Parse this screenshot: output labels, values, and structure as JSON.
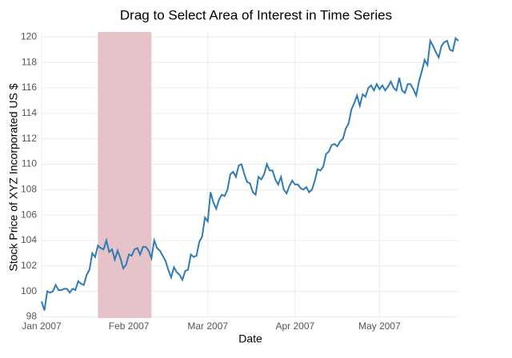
{
  "chart_data": {
    "type": "line",
    "title": "Drag to Select Area of Interest in Time Series",
    "x_label": "Date",
    "y_label": "Stock Price of XYZ Incorporated US $",
    "series": [
      {
        "name": "XYZ",
        "color": "#2f7bb5",
        "values": [
          99.2,
          98.5,
          100.0,
          99.9,
          100.0,
          100.5,
          100.1,
          100.1,
          100.2,
          100.2,
          99.9,
          100.2,
          100.1,
          100.8,
          100.6,
          100.5,
          101.3,
          101.7,
          103.0,
          102.7,
          103.6,
          103.4,
          103.3,
          104.0,
          103.1,
          103.3,
          102.5,
          103.2,
          102.6,
          101.8,
          102.1,
          102.9,
          102.8,
          103.3,
          103.4,
          102.9,
          103.5,
          103.5,
          103.2,
          102.6,
          104.0,
          103.4,
          103.2,
          102.8,
          102.4,
          101.7,
          101.1,
          101.9,
          101.5,
          101.3,
          100.9,
          101.6,
          101.7,
          102.9,
          102.7,
          102.8,
          103.9,
          104.3,
          105.8,
          105.5,
          107.8,
          107.0,
          106.5,
          107.2,
          107.6,
          107.5,
          108.0,
          109.2,
          109.4,
          109.0,
          109.9,
          110.0,
          109.2,
          108.6,
          108.5,
          107.8,
          107.6,
          109.0,
          108.8,
          109.2,
          110.0,
          109.5,
          109.5,
          108.8,
          108.4,
          109.0,
          108.0,
          107.7,
          108.3,
          108.7,
          108.4,
          108.4,
          108.1,
          108.0,
          108.2,
          107.8,
          108.0,
          108.7,
          109.6,
          109.5,
          109.8,
          110.8,
          111.0,
          111.5,
          111.6,
          111.4,
          111.8,
          112.0,
          112.8,
          113.2,
          114.3,
          114.8,
          115.4,
          114.6,
          115.5,
          115.3,
          116.0,
          116.2,
          115.8,
          116.3,
          115.9,
          116.2,
          115.8,
          116.1,
          116.5,
          116.0,
          115.8,
          116.8,
          115.8,
          115.6,
          116.3,
          116.3,
          115.9,
          115.4,
          116.5,
          117.3,
          118.2,
          117.8,
          119.7,
          119.3,
          118.8,
          118.4,
          119.3,
          119.6,
          119.7,
          119.0,
          118.9,
          119.9,
          119.7
        ]
      }
    ],
    "xlim": [
      0,
      148
    ],
    "xticks": [
      {
        "value": 0,
        "label": "Jan 2007"
      },
      {
        "value": 31,
        "label": "Feb 2007"
      },
      {
        "value": 59,
        "label": "Mar 2007"
      },
      {
        "value": 90,
        "label": "Apr 2007"
      },
      {
        "value": 120,
        "label": "May 2007"
      }
    ],
    "ylim": [
      97.9,
      120.4
    ],
    "yticks": [
      98,
      100,
      102,
      104,
      106,
      108,
      110,
      112,
      114,
      116,
      118,
      120
    ],
    "grid": true,
    "selection": {
      "range": [
        20,
        39
      ],
      "color": "#e5c3c8"
    }
  }
}
